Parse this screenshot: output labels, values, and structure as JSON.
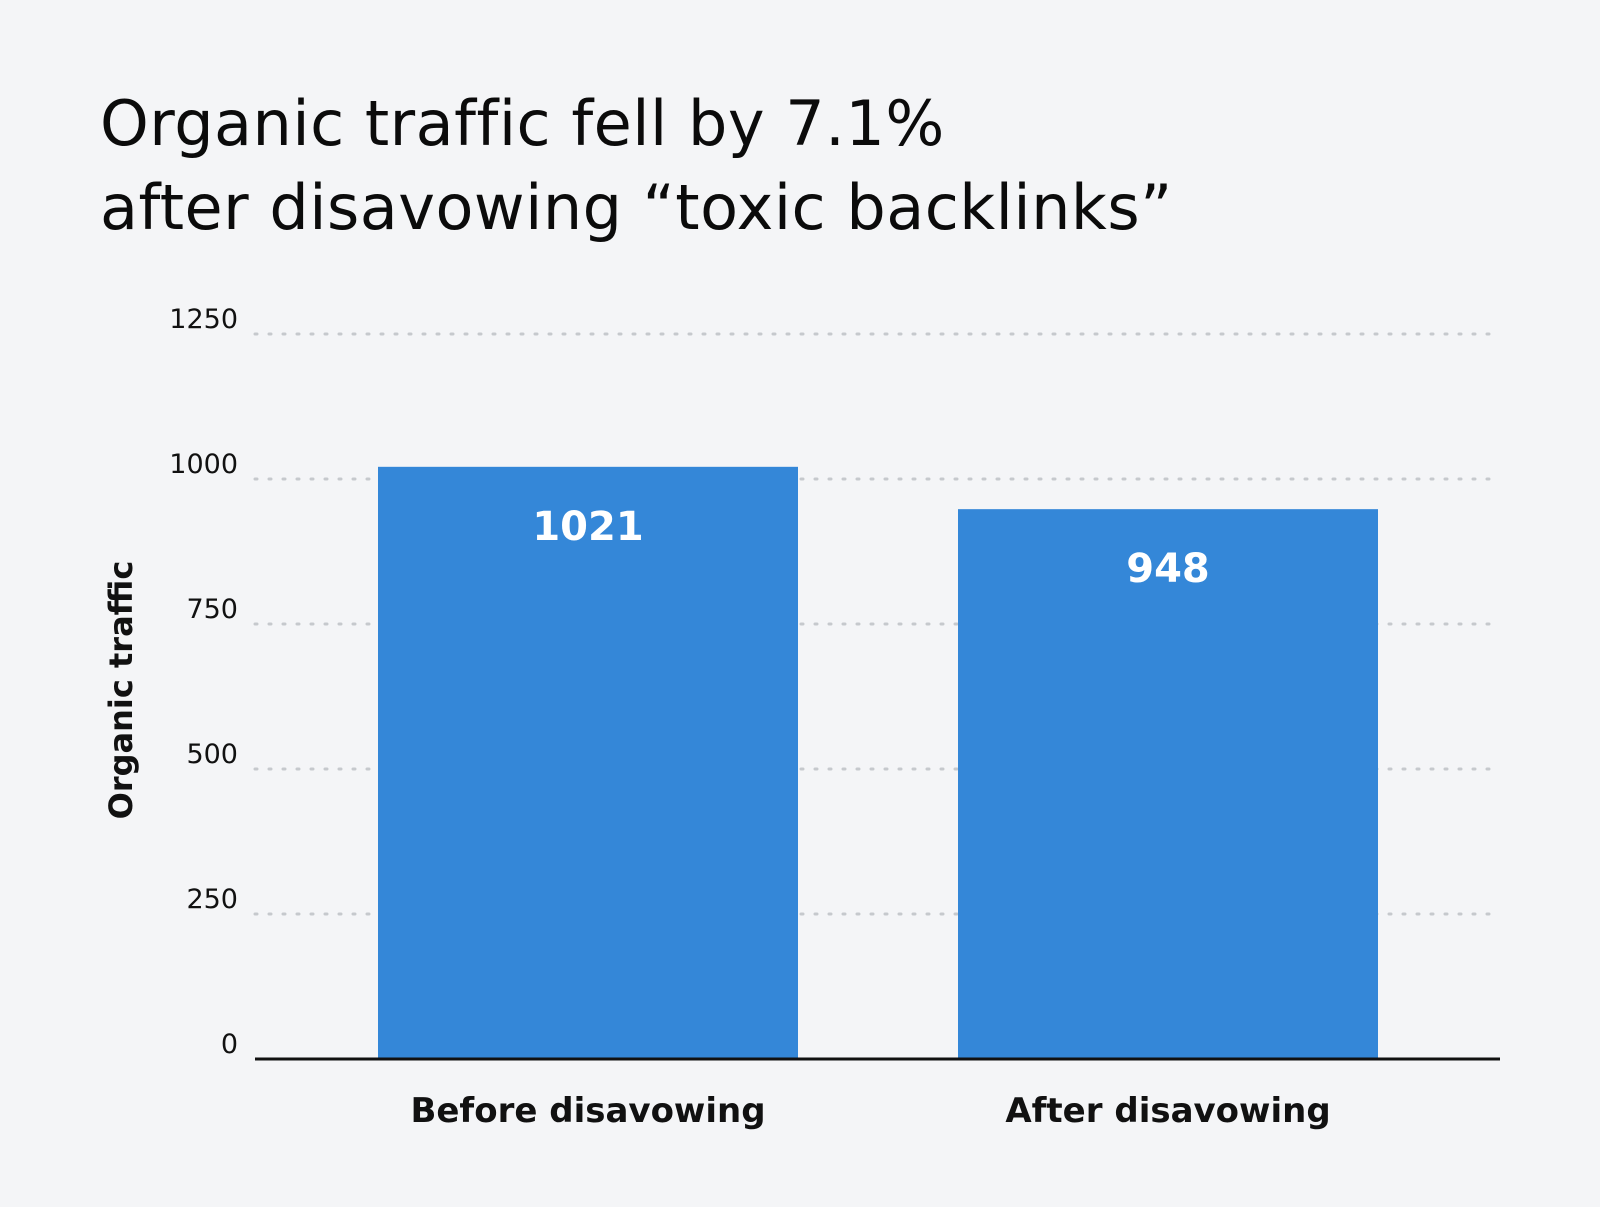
{
  "chart_data": {
    "type": "bar",
    "title": [
      "Organic traffic fell by 7.1%",
      "after disavowing “toxic backlinks”"
    ],
    "categories": [
      "Before disavowing",
      "After disavowing"
    ],
    "values": [
      1021,
      948
    ],
    "ylabel": "Organic traffic",
    "xlabel": "",
    "ylim": [
      0,
      1250
    ],
    "yticks": [
      0,
      250,
      500,
      750,
      1000,
      1250
    ],
    "grid": true,
    "legend": "none",
    "colors": {
      "bar": "#3487d8",
      "value_label": "#ffffff",
      "grid": "#c6c9cd",
      "axis": "#111111",
      "background": "#f4f5f7"
    }
  }
}
